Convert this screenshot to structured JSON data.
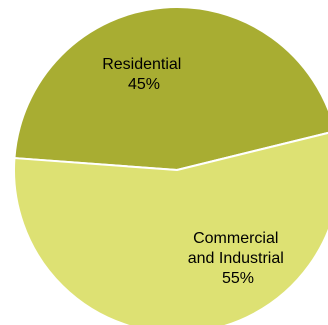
{
  "chart_data": {
    "type": "pie",
    "slices": [
      {
        "label_lines": [
          "Residential"
        ],
        "value": 45,
        "value_label": "45%",
        "color": "#a8ad32"
      },
      {
        "label_lines": [
          "Commercial",
          "and Industrial"
        ],
        "value": 55,
        "value_label": "55%",
        "color": "#dde173"
      }
    ],
    "slice_border_color": "#ffffff"
  }
}
